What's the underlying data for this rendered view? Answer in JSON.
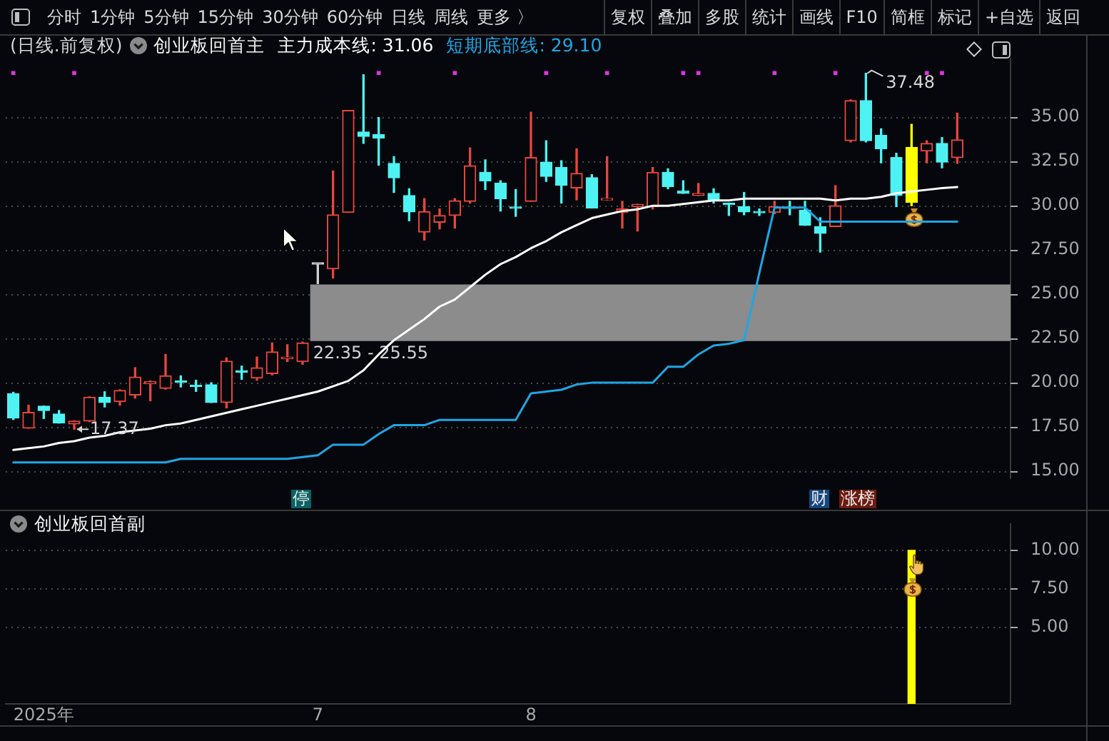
{
  "chart_data": [
    {
      "type": "other",
      "annotations": [
        "分时",
        "1分钟",
        "5分钟",
        "15分钟",
        "30分钟",
        "60分钟",
        "日线",
        "周线",
        "更多 〉",
        "复权",
        "叠加",
        "多股",
        "统计",
        "画线",
        "F10",
        "简框",
        "标记",
        "+自选",
        "返回"
      ]
    },
    {
      "type": "candlestick",
      "title": "(日线.前复权)",
      "subtitle": "创业板回首主",
      "categories": [
        null,
        null,
        null,
        null,
        null,
        null,
        null,
        null,
        null,
        null,
        null,
        null,
        null,
        null,
        null,
        null,
        null,
        null,
        null,
        null,
        null,
        null,
        null,
        null,
        null,
        null,
        null,
        null,
        null,
        null,
        null,
        null,
        null,
        null,
        null,
        null,
        null,
        null,
        null,
        null,
        null,
        null,
        null,
        null,
        null,
        null,
        null,
        null,
        null,
        null,
        null,
        null,
        null,
        null,
        null,
        null,
        null,
        null,
        null,
        null,
        null,
        null,
        null,
        null,
        null,
        null
      ],
      "series": [
        {
          "ohlc": [
            [
              19.38,
              19.46,
              17.92,
              18.0
            ],
            [
              17.43,
              18.73,
              17.43,
              18.32
            ],
            [
              18.68,
              18.68,
              17.98,
              18.43
            ],
            [
              18.23,
              18.43,
              17.72,
              17.72
            ],
            [
              17.67,
              17.85,
              17.37,
              17.83
            ],
            [
              17.83,
              19.2,
              17.8,
              19.18
            ],
            [
              19.18,
              19.49,
              18.63,
              18.88
            ],
            [
              18.93,
              19.6,
              18.73,
              19.56
            ],
            [
              19.31,
              20.85,
              19.13,
              20.32
            ],
            [
              19.94,
              20.1,
              18.98,
              20.06
            ],
            [
              19.68,
              21.6,
              19.64,
              20.39
            ],
            [
              20.09,
              20.39,
              19.76,
              20.02
            ],
            [
              19.83,
              20.14,
              19.51,
              19.79
            ],
            [
              19.89,
              20.0,
              18.88,
              18.88
            ],
            [
              18.88,
              21.4,
              18.58,
              21.22
            ],
            [
              20.68,
              20.94,
              20.19,
              20.6
            ],
            [
              20.26,
              21.45,
              20.14,
              20.85
            ],
            [
              20.52,
              22.25,
              20.44,
              21.74
            ],
            [
              21.35,
              22.15,
              21.2,
              21.45
            ],
            [
              21.19,
              22.3,
              21.04,
              22.25
            ],
            [
              26.7,
              26.7,
              25.6,
              26.7
            ],
            [
              26.43,
              31.96,
              25.92,
              29.49
            ],
            [
              29.62,
              35.39,
              29.62,
              35.39
            ],
            [
              34.17,
              37.4,
              33.52,
              33.92
            ],
            [
              34.02,
              34.98,
              32.29,
              33.83
            ],
            [
              32.39,
              32.77,
              30.75,
              31.58
            ],
            [
              30.58,
              30.96,
              29.15,
              29.65
            ],
            [
              28.51,
              30.4,
              28.06,
              29.67
            ],
            [
              29.07,
              29.82,
              28.69,
              29.45
            ],
            [
              29.45,
              30.4,
              28.74,
              30.28
            ],
            [
              30.25,
              33.27,
              30.15,
              32.26
            ],
            [
              31.89,
              32.59,
              30.91,
              31.41
            ],
            [
              31.28,
              31.41,
              29.7,
              30.4
            ],
            [
              29.9,
              30.91,
              29.4,
              29.85
            ],
            [
              30.25,
              35.28,
              30.25,
              32.72
            ],
            [
              32.46,
              33.67,
              31.38,
              31.66
            ],
            [
              32.16,
              32.54,
              30.15,
              31.15
            ],
            [
              31.0,
              33.22,
              30.33,
              31.83
            ],
            [
              31.58,
              31.76,
              29.87,
              29.87
            ],
            [
              30.33,
              32.77,
              30.33,
              30.4
            ],
            [
              29.62,
              30.25,
              28.74,
              29.82
            ],
            [
              29.95,
              30.08,
              28.57,
              30.08
            ],
            [
              29.95,
              32.16,
              29.82,
              31.89
            ],
            [
              31.89,
              32.09,
              30.96,
              31.08
            ],
            [
              30.83,
              31.41,
              30.7,
              30.7
            ],
            [
              30.58,
              31.26,
              30.58,
              30.7
            ],
            [
              30.7,
              30.96,
              30.15,
              30.33
            ],
            [
              30.1,
              30.15,
              29.45,
              30.06
            ],
            [
              29.95,
              30.75,
              29.49,
              29.65
            ],
            [
              29.64,
              29.82,
              29.45,
              29.6
            ],
            [
              29.62,
              30.25,
              29.55,
              29.95
            ],
            [
              29.9,
              30.25,
              29.49,
              29.85
            ],
            [
              29.75,
              30.25,
              28.89,
              28.89
            ],
            [
              28.82,
              29.32,
              27.38,
              28.44
            ],
            [
              28.82,
              31.13,
              28.82,
              30.0
            ],
            [
              33.67,
              35.98,
              33.6,
              35.94
            ],
            [
              35.94,
              37.48,
              33.6,
              33.67
            ],
            [
              33.98,
              34.35,
              32.42,
              33.22
            ],
            [
              32.72,
              32.97,
              29.95,
              30.58
            ],
            [
              30.2,
              34.6,
              30.0,
              33.3
            ],
            [
              33.09,
              33.67,
              32.42,
              33.52
            ],
            [
              33.52,
              33.85,
              32.14,
              32.46
            ],
            [
              32.72,
              35.23,
              32.39,
              33.72
            ],
            null,
            null,
            null
          ],
          "colors": [
            "#4ef2f2",
            "#e8453c",
            "#4ef2f2",
            "#4ef2f2",
            "#e8453c",
            "#e8453c",
            "#4ef2f2",
            "#e8453c",
            "#e8453c",
            "#e8453c",
            "#e8453c",
            "#4ef2f2",
            "#4ef2f2",
            "#4ef2f2",
            "#e8453c",
            "#4ef2f2",
            "#e8453c",
            "#e8453c",
            "#e8453c",
            "#e8453c",
            "#d0d0d0",
            "#e8453c",
            "#e8453c",
            "#4ef2f2",
            "#4ef2f2",
            "#4ef2f2",
            "#4ef2f2",
            "#e8453c",
            "#e8453c",
            "#e8453c",
            "#e8453c",
            "#4ef2f2",
            "#4ef2f2",
            "#4ef2f2",
            "#e8453c",
            "#4ef2f2",
            "#4ef2f2",
            "#e8453c",
            "#4ef2f2",
            "#e8453c",
            "#e8453c",
            "#e8453c",
            "#e8453c",
            "#4ef2f2",
            "#4ef2f2",
            "#e8453c",
            "#4ef2f2",
            "#4ef2f2",
            "#4ef2f2",
            "#4ef2f2",
            "#e8453c",
            "#4ef2f2",
            "#4ef2f2",
            "#4ef2f2",
            "#e8453c",
            "#e8453c",
            "#4ef2f2",
            "#4ef2f2",
            "#4ef2f2",
            "#ffff00",
            "#e8453c",
            "#4ef2f2",
            "#e8453c",
            null,
            null,
            null
          ]
        },
        {
          "type": "line",
          "name": "主力成本线: 31.06",
          "color": "#ffffff",
          "values": [
            16.2,
            16.3,
            16.4,
            16.6,
            16.7,
            16.9,
            17.0,
            17.2,
            17.3,
            17.4,
            17.6,
            17.7,
            17.9,
            18.1,
            18.3,
            18.5,
            18.7,
            18.9,
            19.1,
            19.3,
            19.5,
            19.8,
            20.1,
            20.7,
            21.6,
            22.4,
            23.0,
            23.6,
            24.3,
            24.7,
            25.4,
            26.1,
            26.7,
            27.1,
            27.6,
            28.0,
            28.5,
            28.9,
            29.3,
            29.5,
            29.7,
            29.8,
            30.0,
            30.0,
            30.1,
            30.2,
            30.3,
            30.3,
            30.4,
            30.4,
            30.4,
            30.4,
            30.4,
            30.4,
            30.3,
            30.4,
            30.4,
            30.5,
            30.7,
            30.8,
            30.9,
            31.0,
            31.06,
            null,
            null,
            null
          ]
        },
        {
          "type": "line",
          "name": "短期底部线: 29.10",
          "color": "#1fa6e4",
          "values": [
            15.5,
            15.5,
            15.5,
            15.5,
            15.5,
            15.5,
            15.5,
            15.5,
            15.5,
            15.5,
            15.5,
            15.7,
            15.7,
            15.7,
            15.7,
            15.7,
            15.7,
            15.7,
            15.7,
            15.8,
            15.9,
            16.5,
            16.5,
            16.5,
            17.1,
            17.6,
            17.6,
            17.6,
            17.9,
            17.9,
            17.9,
            17.9,
            17.9,
            17.9,
            19.4,
            19.5,
            19.6,
            19.9,
            20.0,
            20.0,
            20.0,
            20.0,
            20.0,
            20.9,
            20.9,
            21.6,
            22.1,
            22.2,
            22.4,
            26.2,
            29.9,
            29.9,
            29.9,
            29.1,
            29.1,
            29.1,
            29.1,
            29.1,
            29.1,
            29.1,
            29.1,
            29.1,
            29.1,
            null,
            null,
            null
          ]
        },
        {
          "type": "scatter",
          "color": "#e033e0",
          "marker": "square",
          "values": [
            37.5,
            null,
            null,
            null,
            37.5,
            null,
            null,
            null,
            null,
            null,
            null,
            null,
            null,
            null,
            null,
            null,
            null,
            null,
            null,
            null,
            null,
            null,
            null,
            null,
            37.5,
            null,
            null,
            null,
            null,
            37.5,
            null,
            null,
            null,
            null,
            null,
            37.5,
            null,
            null,
            null,
            37.5,
            null,
            null,
            null,
            null,
            37.5,
            37.5,
            null,
            null,
            null,
            null,
            37.5,
            null,
            null,
            null,
            37.5,
            null,
            null,
            null,
            null,
            null,
            37.5,
            37.5,
            null,
            null,
            null,
            null
          ]
        }
      ],
      "ylim": [
        14.6,
        38.3
      ],
      "yticks": [
        {
          "value": 15,
          "label": "15.00"
        },
        {
          "value": 17.5,
          "label": "17.50"
        },
        {
          "value": 20,
          "label": "20.00"
        },
        {
          "value": 22.5,
          "label": "22.50"
        },
        {
          "value": 25,
          "label": "25.00"
        },
        {
          "value": 27.5,
          "label": "27.50"
        },
        {
          "value": 30,
          "label": "30.00"
        },
        {
          "value": 32.5,
          "label": "32.50"
        },
        {
          "value": 35,
          "label": "35.00"
        }
      ],
      "grid": "y",
      "legend": "top left",
      "tick_labels": "y",
      "bands": [
        {
          "axis": "y",
          "from": 22.35,
          "to": 25.55,
          "label": "22.35 - 25.55",
          "color": "#8c8c8c"
        }
      ],
      "annotations": [
        "停",
        "财",
        "涨榜",
        "17.37",
        "37.48"
      ]
    },
    {
      "type": "bar",
      "subtitle": "创业板回首副",
      "categories": [
        null,
        null,
        "2025年",
        null,
        null,
        null,
        null,
        null,
        null,
        null,
        null,
        null,
        null,
        null,
        null,
        null,
        null,
        null,
        null,
        null,
        "7",
        null,
        null,
        null,
        null,
        null,
        null,
        null,
        null,
        null,
        null,
        null,
        null,
        null,
        "8",
        null,
        null,
        null,
        null,
        null,
        null,
        null,
        null,
        null,
        null,
        null,
        null,
        null,
        null,
        null,
        null,
        null,
        null,
        null,
        null,
        null,
        null,
        null,
        null,
        null,
        null,
        null,
        null,
        null,
        null,
        null
      ],
      "values": [
        null,
        null,
        null,
        null,
        null,
        null,
        null,
        null,
        null,
        null,
        null,
        null,
        null,
        null,
        null,
        null,
        null,
        null,
        null,
        null,
        null,
        null,
        null,
        null,
        null,
        null,
        null,
        null,
        null,
        null,
        null,
        null,
        null,
        null,
        null,
        null,
        null,
        null,
        null,
        null,
        null,
        null,
        null,
        null,
        null,
        null,
        null,
        null,
        null,
        null,
        null,
        null,
        null,
        null,
        null,
        null,
        null,
        null,
        null,
        10,
        null,
        null,
        null,
        null,
        null,
        null
      ],
      "color": "#ffff00",
      "ylim": [
        0,
        11.7
      ],
      "yticks": [
        {
          "value": 5,
          "label": "5.00"
        },
        {
          "value": 7.5,
          "label": "7.50"
        },
        {
          "value": 10,
          "label": "10.00"
        }
      ],
      "grid": "y"
    }
  ]
}
